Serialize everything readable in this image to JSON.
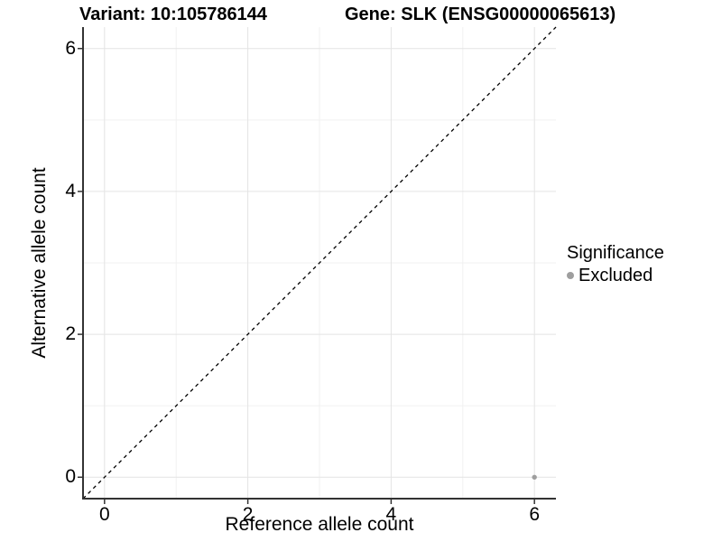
{
  "header": {
    "variant": "Variant: 10:105786144",
    "gene": "Gene: SLK (ENSG00000065613)"
  },
  "axes": {
    "x": {
      "label": "Reference allele count"
    },
    "y": {
      "label": "Alternative allele count"
    }
  },
  "legend": {
    "title": "Significance",
    "items": [
      {
        "label": "Excluded",
        "color": "#9e9e9e"
      }
    ]
  },
  "colors": {
    "background": "#ffffff",
    "axis": "#333333",
    "grid_major": "#e4e4e4",
    "grid_minor": "#f1f1f1",
    "text": "#000000",
    "excluded_point": "#9e9e9e"
  },
  "chart_data": {
    "type": "scatter",
    "title": "Variant: 10:105786144   Gene: SLK (ENSG00000065613)",
    "xlabel": "Reference allele count",
    "ylabel": "Alternative allele count",
    "xlim": [
      -0.3,
      6.3
    ],
    "ylim": [
      -0.3,
      6.3
    ],
    "x_ticks": [
      0,
      2,
      4,
      6
    ],
    "y_ticks": [
      0,
      2,
      4,
      6
    ],
    "grid": "major gridlines at even integers, minor gridlines at odd integers, grid on",
    "legend_position": "right",
    "identity_line": {
      "style": "dashed",
      "color": "#000000",
      "equation": "y = x"
    },
    "series": [
      {
        "name": "Excluded",
        "color": "#9e9e9e",
        "points": [
          [
            6,
            0
          ]
        ]
      }
    ]
  }
}
